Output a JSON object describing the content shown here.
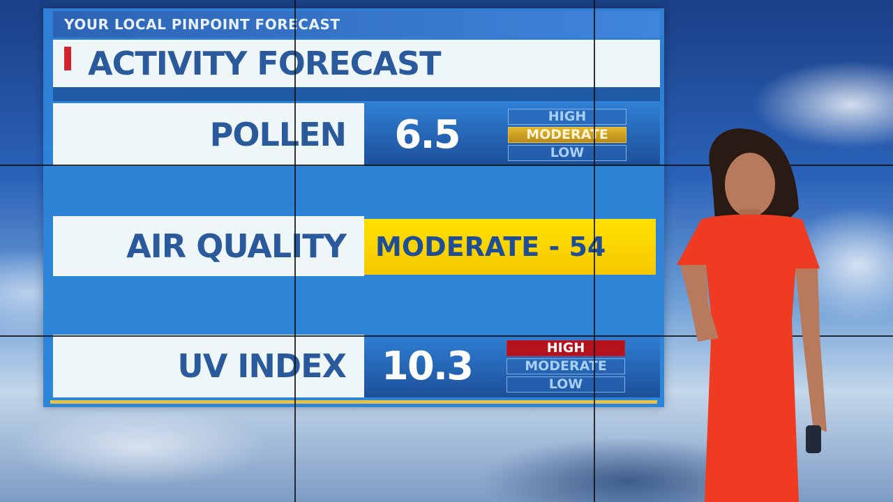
{
  "header": {
    "subtitle": "YOUR LOCAL PINPOINT FORECAST",
    "title": "ACTIVITY FORECAST"
  },
  "rows": {
    "pollen": {
      "label": "POLLEN",
      "value": "6.5",
      "levels": [
        "HIGH",
        "MODERATE",
        "LOW"
      ],
      "active": "MODERATE"
    },
    "air_quality": {
      "label": "AIR QUALITY",
      "value": "MODERATE - 54"
    },
    "uv_index": {
      "label": "UV INDEX",
      "value": "10.3",
      "levels": [
        "HIGH",
        "MODERATE",
        "LOW"
      ],
      "active": "HIGH"
    }
  },
  "colors": {
    "accent_red": "#d0232b",
    "moderate_gold": "#e2b631",
    "high_red": "#b4121c",
    "air_yellow": "#ffe000",
    "panel_blue": "#2f7fd4",
    "text_blue": "#2a5a9c"
  }
}
